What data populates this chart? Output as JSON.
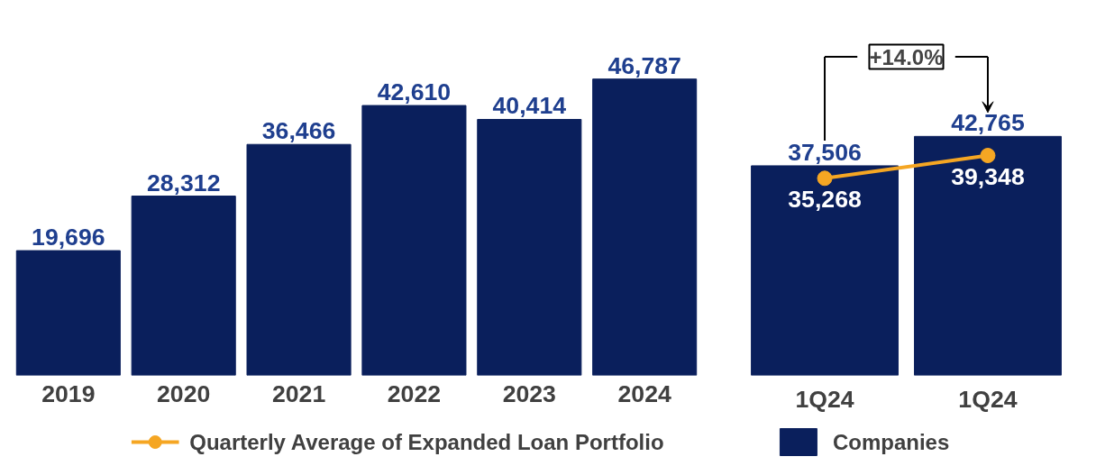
{
  "chart_data": [
    {
      "type": "bar",
      "categories": [
        "2019",
        "2020",
        "2021",
        "2022",
        "2023",
        "2024"
      ],
      "series": [
        {
          "color": "#0a1f5c",
          "values": [
            19696,
            28312,
            36466,
            42610,
            40414,
            46787
          ],
          "value_labels": [
            "19,696",
            "28,312",
            "36,466",
            "42,610",
            "40,414",
            "46,787"
          ]
        }
      ],
      "grid": false
    },
    {
      "type": "bar",
      "categories": [
        "1Q24",
        "1Q24"
      ],
      "series": [
        {
          "name": "Companies",
          "color": "#0a1f5c",
          "values": [
            37506,
            42765
          ],
          "value_labels": [
            "37,506",
            "42,765"
          ]
        },
        {
          "name": "Quarterly Average of Expanded Loan Portfolio",
          "type": "line",
          "color": "#f5a623",
          "values": [
            35268,
            39348
          ],
          "value_labels": [
            "35,268",
            "39,348"
          ]
        }
      ],
      "marker": "circle",
      "grid": false,
      "legend": "bottom",
      "annotations": [
        "+14.0%"
      ]
    }
  ]
}
